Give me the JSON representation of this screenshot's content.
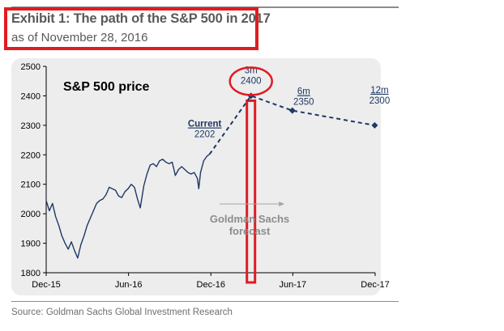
{
  "header": {
    "title": "Exhibit 1: The path of the S&P 500 in 2017",
    "subtitle": "as of November 28, 2016"
  },
  "footer": {
    "source": "Source: Goldman Sachs Global Investment Research"
  },
  "colors": {
    "highlight": "#e11b22",
    "series": "#1f3864",
    "forecast_arrow": "#a6a6a6",
    "panel": "#ededed"
  },
  "chart_data": {
    "type": "line",
    "title": "S&P 500 price",
    "xlabel": "",
    "ylabel": "",
    "ylim": [
      1800,
      2500
    ],
    "yticks": [
      1800,
      1900,
      2000,
      2100,
      2200,
      2300,
      2400,
      2500
    ],
    "xlim": [
      "2015-12-01",
      "2017-12-01"
    ],
    "xticks": [
      {
        "label": "Dec-15",
        "date": "2015-12-01"
      },
      {
        "label": "Jun-16",
        "date": "2016-06-01"
      },
      {
        "label": "Dec-16",
        "date": "2016-12-01"
      },
      {
        "label": "Jun-17",
        "date": "2017-06-01"
      },
      {
        "label": "Dec-17",
        "date": "2017-12-01"
      }
    ],
    "grid": false,
    "series": [
      {
        "name": "",
        "style": "solid",
        "x": [
          "2015-12-01",
          "2015-12-08",
          "2015-12-15",
          "2015-12-22",
          "2015-12-29",
          "2016-01-05",
          "2016-01-12",
          "2016-01-19",
          "2016-01-26",
          "2016-02-02",
          "2016-02-09",
          "2016-02-16",
          "2016-02-23",
          "2016-03-01",
          "2016-03-08",
          "2016-03-15",
          "2016-03-22",
          "2016-03-29",
          "2016-04-05",
          "2016-04-12",
          "2016-04-19",
          "2016-04-26",
          "2016-05-03",
          "2016-05-10",
          "2016-05-17",
          "2016-05-24",
          "2016-05-31",
          "2016-06-07",
          "2016-06-14",
          "2016-06-21",
          "2016-06-27",
          "2016-07-05",
          "2016-07-12",
          "2016-07-19",
          "2016-07-26",
          "2016-08-02",
          "2016-08-09",
          "2016-08-16",
          "2016-08-23",
          "2016-08-30",
          "2016-09-06",
          "2016-09-13",
          "2016-09-20",
          "2016-09-27",
          "2016-10-04",
          "2016-10-11",
          "2016-10-18",
          "2016-10-25",
          "2016-11-01",
          "2016-11-04",
          "2016-11-08",
          "2016-11-15",
          "2016-11-22",
          "2016-11-28"
        ],
        "values": [
          2045,
          2010,
          2035,
          1990,
          1960,
          1925,
          1900,
          1880,
          1905,
          1875,
          1850,
          1895,
          1925,
          1960,
          1985,
          2010,
          2035,
          2045,
          2050,
          2065,
          2090,
          2085,
          2080,
          2060,
          2055,
          2075,
          2085,
          2100,
          2090,
          2050,
          2020,
          2095,
          2135,
          2165,
          2170,
          2160,
          2180,
          2185,
          2175,
          2170,
          2175,
          2130,
          2150,
          2160,
          2150,
          2140,
          2135,
          2140,
          2120,
          2085,
          2140,
          2180,
          2195,
          2202
        ]
      },
      {
        "name": "",
        "style": "dashed",
        "x": [
          "2016-11-28",
          "2017-02-28",
          "2017-05-31",
          "2017-11-30"
        ],
        "values": [
          2202,
          2400,
          2350,
          2300
        ]
      }
    ],
    "annotations": [
      {
        "id": "current",
        "x": "2016-11-28",
        "value": 2202,
        "labels": [
          "Current",
          "2202"
        ]
      },
      {
        "id": "3m",
        "x": "2017-02-28",
        "value": 2400,
        "labels": [
          "3m",
          "2400"
        ]
      },
      {
        "id": "6m",
        "x": "2017-05-31",
        "value": 2350,
        "labels": [
          "6m",
          "2350"
        ]
      },
      {
        "id": "12m",
        "x": "2017-11-30",
        "value": 2300,
        "labels": [
          "12m",
          "2300"
        ]
      }
    ],
    "forecast_label": [
      "Goldman Sachs",
      "forecast"
    ],
    "highlight": {
      "date": "2017-02-28"
    }
  }
}
